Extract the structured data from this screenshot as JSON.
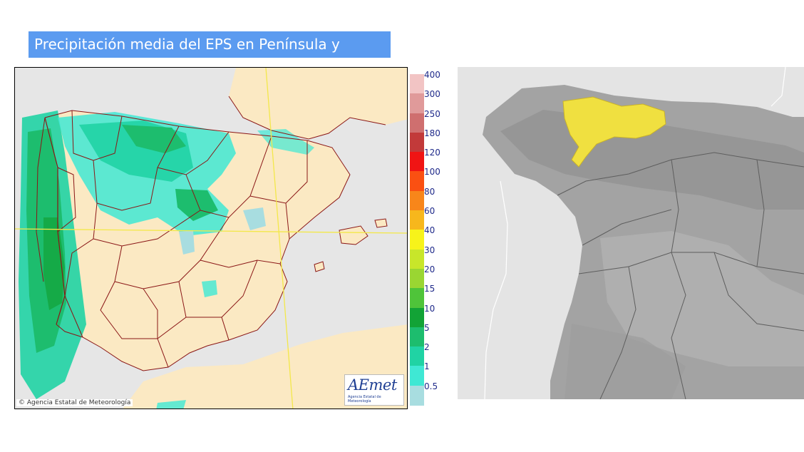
{
  "title": "Precipitación media del EPS en Península y Baleares",
  "copyright": "© Agencia Estatal de Meteorología",
  "logo": {
    "main": "AEmet",
    "sub": "Agencia Estatal de Meteorología"
  },
  "legend": {
    "labels": [
      "400",
      "300",
      "250",
      "180",
      "120",
      "100",
      "80",
      "60",
      "40",
      "30",
      "20",
      "15",
      "10",
      "5",
      "2",
      "1",
      "0.5"
    ],
    "colors": [
      "#f2c4c4",
      "#e09a9a",
      "#cf6f6f",
      "#c23a3a",
      "#f01414",
      "#fa5012",
      "#f8861a",
      "#f7b71c",
      "#f7f31a",
      "#c8e62a",
      "#9ad632",
      "#4fc43a",
      "#12a336",
      "#1dbd6e",
      "#20d3a4",
      "#3fe8d4",
      "#a8dde0"
    ]
  },
  "colors": {
    "land": "#fbe9c3",
    "sea": "#e6e6e6",
    "border": "#8a1616",
    "gridline": "#f3e84a",
    "highlight": "#f0e040",
    "relief": "#9a9a9a"
  }
}
